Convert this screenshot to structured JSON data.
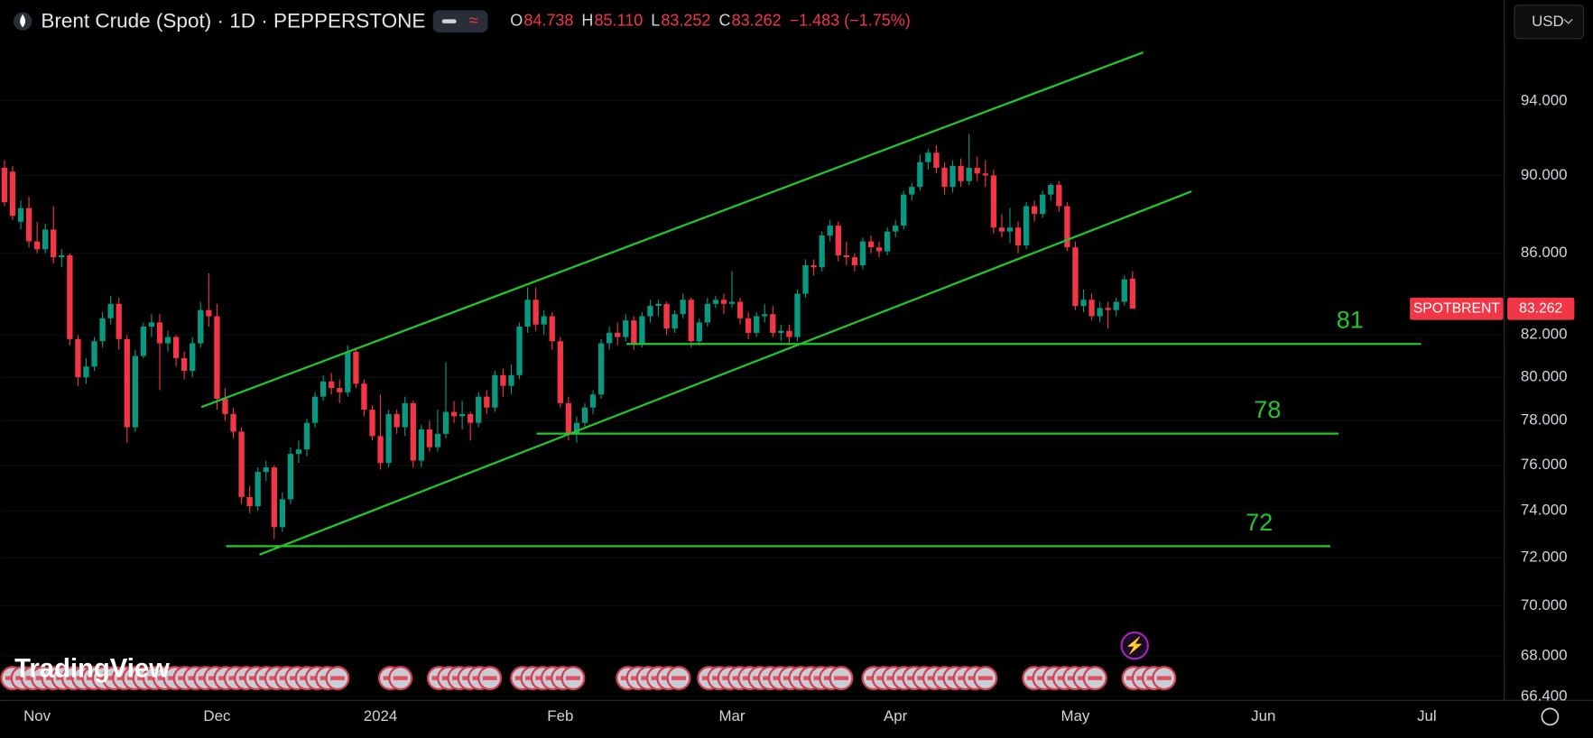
{
  "header": {
    "currency": "USD",
    "watermark": "TradingView",
    "ohlc": [
      {
        "key": "O",
        "value": "84.738"
      },
      {
        "key": "H",
        "value": "85.110"
      },
      {
        "key": "L",
        "value": "83.252"
      },
      {
        "key": "C",
        "value": "83.262"
      }
    ],
    "change": "−1.483 (−1.75%)"
  },
  "chart_data": {
    "type": "candlestick",
    "title": "Brent Crude (Spot) · 1D · PEPPERSTONE",
    "categories": [
      null,
      null,
      null,
      null,
      "Nov",
      null,
      null,
      null,
      null,
      null,
      null,
      null,
      null,
      null,
      null,
      null,
      null,
      null,
      null,
      null,
      null,
      null,
      null,
      null,
      null,
      null,
      "Dec",
      null,
      null,
      null,
      null,
      null,
      null,
      null,
      null,
      null,
      null,
      null,
      null,
      null,
      null,
      null,
      null,
      null,
      null,
      null,
      "2024",
      null,
      null,
      null,
      null,
      null,
      null,
      null,
      null,
      null,
      null,
      null,
      null,
      null,
      null,
      null,
      null,
      null,
      null,
      null,
      null,
      null,
      "Feb",
      null,
      null,
      null,
      null,
      null,
      null,
      null,
      null,
      null,
      null,
      null,
      null,
      null,
      null,
      null,
      null,
      null,
      null,
      null,
      null,
      "Mar",
      null,
      null,
      null,
      null,
      null,
      null,
      null,
      null,
      null,
      null,
      null,
      null,
      null,
      null,
      null,
      null,
      null,
      null,
      null,
      "Apr",
      null,
      null,
      null,
      null,
      null,
      null,
      null,
      null,
      null,
      null,
      null,
      null,
      null,
      null,
      null,
      null,
      null,
      null,
      null,
      null,
      null,
      "May",
      null,
      null,
      null,
      null,
      null,
      null,
      null,
      null,
      null,
      null,
      null,
      null,
      null,
      null,
      null,
      null,
      null,
      null,
      null,
      null,
      null,
      null,
      "Jun",
      null,
      null,
      null,
      null,
      null,
      null,
      null,
      null,
      null,
      null,
      null,
      null,
      null,
      null,
      null,
      null,
      null,
      null,
      null,
      "Jul",
      null,
      null,
      null,
      null,
      null,
      null,
      null,
      null,
      null
    ],
    "open": [
      90.4,
      90.2,
      87.6,
      88.3,
      86.6,
      86.2,
      87.2,
      85.8,
      85.9,
      81.8,
      80.0,
      80.5,
      81.7,
      82.8,
      83.5,
      81.8,
      77.7,
      81.0,
      82.4,
      82.6,
      81.6,
      81.9,
      80.9,
      80.3,
      81.6,
      83.2,
      82.9,
      79.0,
      78.3,
      77.5,
      74.6,
      74.2,
      75.7,
      75.9,
      73.3,
      74.5,
      76.5,
      76.7,
      77.9,
      79.1,
      79.8,
      79.5,
      79.3,
      81.2,
      79.7,
      78.5,
      77.3,
      76.1,
      78.3,
      77.7,
      78.8,
      76.2,
      77.6,
      76.8,
      77.4,
      78.4,
      78.2,
      78.3,
      77.9,
      79.1,
      78.6,
      80.1,
      79.6,
      80.1,
      82.4,
      83.7,
      82.5,
      82.9,
      81.7,
      78.8,
      77.4,
      77.9,
      78.6,
      79.2,
      81.6,
      82.1,
      81.9,
      82.7,
      81.6,
      82.9,
      83.4,
      83.5,
      82.3,
      83.0,
      83.7,
      81.7,
      82.6,
      83.5,
      83.7,
      83.5,
      83.6,
      82.8,
      82.1,
      82.9,
      83.0,
      82.1,
      82.2,
      81.9,
      84.0,
      85.4,
      85.3,
      86.9,
      87.4,
      85.9,
      85.8,
      85.4,
      86.6,
      86.3,
      86.1,
      87.1,
      87.4,
      89.0,
      89.4,
      90.7,
      91.2,
      90.4,
      89.4,
      90.5,
      89.7,
      90.4,
      90.1,
      90.0,
      87.3,
      87.1,
      87.3,
      86.4,
      88.4,
      88.0,
      89.0,
      89.5,
      88.4,
      86.3,
      83.4,
      83.7,
      82.9,
      83.3,
      83.2,
      83.6,
      84.738,
      null,
      null,
      null,
      null,
      null,
      null,
      null,
      null,
      null,
      null,
      null,
      null,
      null,
      null,
      null,
      null,
      null,
      null,
      null,
      null,
      null,
      null,
      null,
      null,
      null,
      null,
      null,
      null,
      null,
      null,
      null,
      null,
      null,
      null,
      null,
      null,
      null,
      null,
      null,
      null,
      null,
      null,
      null,
      null,
      null
    ],
    "high": [
      90.8,
      90.5,
      88.7,
      88.9,
      87.6,
      87.5,
      88.4,
      86.2,
      86.0,
      82.0,
      80.9,
      81.9,
      83.1,
      83.9,
      83.8,
      82.0,
      81.3,
      82.6,
      83.0,
      83.0,
      82.2,
      82.0,
      81.2,
      81.9,
      83.6,
      85.0,
      83.5,
      79.5,
      78.6,
      77.7,
      75.1,
      75.9,
      76.2,
      76.0,
      74.8,
      76.8,
      77.1,
      78.1,
      79.3,
      80.1,
      80.2,
      79.9,
      81.5,
      81.4,
      79.9,
      78.7,
      79.2,
      78.5,
      78.5,
      79.1,
      78.9,
      77.8,
      78.0,
      78.5,
      80.7,
      78.9,
      78.9,
      78.4,
      79.3,
      79.4,
      80.3,
      80.4,
      80.6,
      82.6,
      84.3,
      84.3,
      83.2,
      83.1,
      81.9,
      79.1,
      78.2,
      78.8,
      79.4,
      81.8,
      82.4,
      82.6,
      83.0,
      82.9,
      83.1,
      83.7,
      83.7,
      83.6,
      83.2,
      84.0,
      83.8,
      82.8,
      83.8,
      83.9,
      84.0,
      85.1,
      83.8,
      83.1,
      83.1,
      83.5,
      83.4,
      82.5,
      82.5,
      84.2,
      85.7,
      85.7,
      87.1,
      87.7,
      87.6,
      86.6,
      86.0,
      86.8,
      86.9,
      86.6,
      87.3,
      87.7,
      89.2,
      89.6,
      91.1,
      91.4,
      91.6,
      90.7,
      90.8,
      90.9,
      92.2,
      91.0,
      90.8,
      90.3,
      88.0,
      88.3,
      87.6,
      88.6,
      88.7,
      89.2,
      89.6,
      89.7,
      88.6,
      86.6,
      84.2,
      84.0,
      83.6,
      83.6,
      83.8,
      84.9,
      85.11,
      null,
      null,
      null,
      null,
      null,
      null,
      null,
      null,
      null,
      null,
      null,
      null,
      null,
      null,
      null,
      null,
      null,
      null,
      null,
      null,
      null,
      null,
      null,
      null,
      null,
      null,
      null,
      null,
      null,
      null,
      null,
      null,
      null,
      null,
      null,
      null,
      null,
      null,
      null,
      null,
      null,
      null,
      null,
      null,
      null
    ],
    "low": [
      88.4,
      87.7,
      87.2,
      86.3,
      86.0,
      86.0,
      85.5,
      85.3,
      81.5,
      79.6,
      79.7,
      80.3,
      81.4,
      82.5,
      81.3,
      77.0,
      77.5,
      80.9,
      81.9,
      79.4,
      81.2,
      80.5,
      79.9,
      80.0,
      81.4,
      82.4,
      78.5,
      78.0,
      77.2,
      74.3,
      73.9,
      74.0,
      75.3,
      72.8,
      73.1,
      74.3,
      76.1,
      76.4,
      77.7,
      78.9,
      79.2,
      78.8,
      79.1,
      79.5,
      78.2,
      77.1,
      75.8,
      75.9,
      77.4,
      77.3,
      75.9,
      75.9,
      76.6,
      76.6,
      77.2,
      77.9,
      77.6,
      77.1,
      77.7,
      78.3,
      78.4,
      79.1,
      79.2,
      79.9,
      82.1,
      82.2,
      82.0,
      81.3,
      78.6,
      77.1,
      77.0,
      77.7,
      78.3,
      79.0,
      81.3,
      81.5,
      81.7,
      81.3,
      81.4,
      82.6,
      82.9,
      82.0,
      82.1,
      82.8,
      81.4,
      81.5,
      82.4,
      83.3,
      83.0,
      83.3,
      82.5,
      81.8,
      81.9,
      82.6,
      81.9,
      81.7,
      81.5,
      81.7,
      83.8,
      84.9,
      85.1,
      86.6,
      85.6,
      85.4,
      85.1,
      85.2,
      86.0,
      85.8,
      85.9,
      86.8,
      87.2,
      88.7,
      89.2,
      90.3,
      90.1,
      89.0,
      89.1,
      89.4,
      89.5,
      89.7,
      89.4,
      87.0,
      86.8,
      86.5,
      86.0,
      86.2,
      87.6,
      87.8,
      88.7,
      88.1,
      86.1,
      83.2,
      83.1,
      82.7,
      82.6,
      82.3,
      82.9,
      83.4,
      83.252,
      null,
      null,
      null,
      null,
      null,
      null,
      null,
      null,
      null,
      null,
      null,
      null,
      null,
      null,
      null,
      null,
      null,
      null,
      null,
      null,
      null,
      null,
      null,
      null,
      null,
      null,
      null,
      null,
      null,
      null,
      null,
      null,
      null,
      null,
      null,
      null,
      null,
      null,
      null,
      null,
      null,
      null,
      null,
      null,
      null
    ],
    "close": [
      88.6,
      87.9,
      88.3,
      86.6,
      86.2,
      87.2,
      85.8,
      85.9,
      81.8,
      80.0,
      80.5,
      81.7,
      82.8,
      83.5,
      81.8,
      77.7,
      81.0,
      82.4,
      82.6,
      81.6,
      81.9,
      80.9,
      80.3,
      81.6,
      83.2,
      82.9,
      79.0,
      78.3,
      77.5,
      74.6,
      74.2,
      75.7,
      75.9,
      73.3,
      74.5,
      76.5,
      76.7,
      77.9,
      79.1,
      79.8,
      79.5,
      79.3,
      81.2,
      79.7,
      78.5,
      77.3,
      76.1,
      78.3,
      77.7,
      78.8,
      76.2,
      77.6,
      76.8,
      77.4,
      78.4,
      78.2,
      78.3,
      77.9,
      79.1,
      78.6,
      80.1,
      79.6,
      80.1,
      82.4,
      83.7,
      82.5,
      82.9,
      81.7,
      78.8,
      77.4,
      77.9,
      78.6,
      79.2,
      81.6,
      82.1,
      81.9,
      82.7,
      81.6,
      82.9,
      83.4,
      83.5,
      82.3,
      83.0,
      83.7,
      81.7,
      82.6,
      83.5,
      83.7,
      83.5,
      83.6,
      82.8,
      82.1,
      82.9,
      83.0,
      82.1,
      82.2,
      81.9,
      84.0,
      85.4,
      85.3,
      86.9,
      87.4,
      85.9,
      85.8,
      85.4,
      86.6,
      86.3,
      86.1,
      87.1,
      87.4,
      89.0,
      89.4,
      90.7,
      91.2,
      90.4,
      89.4,
      90.5,
      89.7,
      90.4,
      90.1,
      90.0,
      87.3,
      87.1,
      87.3,
      86.4,
      88.4,
      88.0,
      89.0,
      89.5,
      88.4,
      86.3,
      83.4,
      83.7,
      82.9,
      83.3,
      83.2,
      83.6,
      84.7,
      83.262,
      null,
      null,
      null,
      null,
      null,
      null,
      null,
      null,
      null,
      null,
      null,
      null,
      null,
      null,
      null,
      null,
      null,
      null,
      null,
      null,
      null,
      null,
      null,
      null,
      null,
      null,
      null,
      null,
      null,
      null,
      null,
      null,
      null,
      null,
      null,
      null,
      null,
      null,
      null,
      null,
      null,
      null,
      null,
      null,
      null
    ],
    "up_color": "#089981",
    "down_color": "#f23645",
    "log_scale": true,
    "ylim": [
      66.25,
      99.7
    ],
    "yticks": [
      {
        "value": 94,
        "label": "94.000"
      },
      {
        "value": 90,
        "label": "90.000"
      },
      {
        "value": 86,
        "label": "86.000"
      },
      {
        "value": 82,
        "label": "82.000"
      },
      {
        "value": 80,
        "label": "80.000"
      },
      {
        "value": 78,
        "label": "78.000"
      },
      {
        "value": 76,
        "label": "76.000"
      },
      {
        "value": 74,
        "label": "74.000"
      },
      {
        "value": 72,
        "label": "72.000"
      },
      {
        "value": 70,
        "label": "70.000"
      },
      {
        "value": 68,
        "label": "68.000"
      },
      {
        "value": 66.4,
        "label": "66.400"
      }
    ],
    "last_price": {
      "label": "SPOTBRENT",
      "value": 83.262
    },
    "line_color": "#22c72c",
    "levels": [
      {
        "label": "81",
        "price": 81.57,
        "x": [
          76.1,
          173.3
        ]
      },
      {
        "label": "78",
        "price": 77.41,
        "x": [
          65.1,
          163.2
        ]
      },
      {
        "label": "72",
        "price": 72.49,
        "x": [
          27.1,
          162.2
        ]
      }
    ],
    "trend_lines": [
      {
        "x": [
          24.1,
          139.3
        ],
        "y": [
          78.62,
          96.7
        ]
      },
      {
        "x": [
          31.2,
          145.2
        ],
        "y": [
          72.13,
          89.16
        ]
      }
    ]
  }
}
